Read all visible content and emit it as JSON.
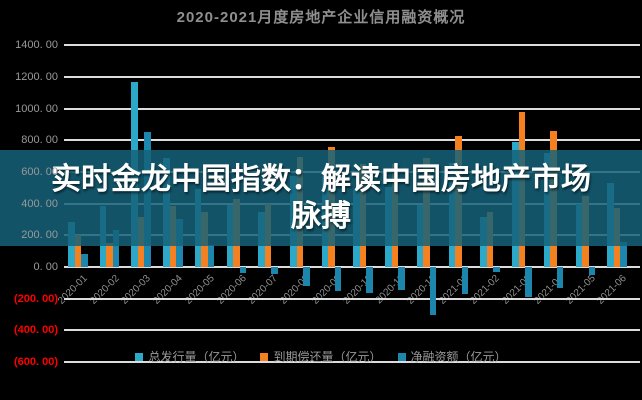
{
  "chart_title": "2020-2021月度房地产企业信用融资概况",
  "overlay": {
    "line1": "实时金龙中国指数：解读中国房地产市场",
    "line2": "脉搏"
  },
  "colors": {
    "background": "#000000",
    "title_gray": "#8f8f8f",
    "gridline": "#dcdcdc",
    "y_label_gray": "#9a9a9a",
    "y_label_negative_red": "#ff0000",
    "overlay_band": "rgba(21,97,121,0.85)",
    "overlay_text": "#ffffff",
    "series_issuance_teal": "#2ca9c9",
    "series_repayment_orange": "#f5801f",
    "series_net_blue": "#1d86ac"
  },
  "y_axis": {
    "labels": [
      "1400. 00",
      "1200. 00",
      "1000. 00",
      "800. 00",
      "600. 00",
      "400. 00",
      "200. 00",
      "0. 00",
      "(200. 00)",
      "(400. 00)",
      "(600. 00)"
    ],
    "values": [
      1400,
      1200,
      1000,
      800,
      600,
      400,
      200,
      0,
      -200,
      -400,
      -600
    ]
  },
  "chart_data": {
    "type": "bar",
    "title": "2020-2021月度房地产企业信用融资概况",
    "xlabel": "",
    "ylabel": "亿元",
    "ylim": [
      -600,
      1400
    ],
    "grid_step": 200,
    "grid": true,
    "legend_position": "bottom",
    "categories": [
      "2020-01",
      "2020-02",
      "2020-03",
      "2020-04",
      "2020-05",
      "2020-06",
      "2020-07",
      "2020-08",
      "2020-09",
      "2020-10",
      "2020-11",
      "2020-12",
      "2021-01",
      "2021-02",
      "2021-03",
      "2021-04",
      "2021-05",
      "2021-06"
    ],
    "series": [
      {
        "name": "总发行量（亿元）",
        "color": "#2ca9c9",
        "values": [
          285,
          385,
          1165,
          690,
          490,
          390,
          350,
          575,
          610,
          485,
          505,
          390,
          655,
          318,
          790,
          720,
          400,
          530
        ]
      },
      {
        "name": "到期偿还量（亿元）",
        "color": "#f5801f",
        "values": [
          200,
          150,
          315,
          385,
          350,
          430,
          395,
          695,
          760,
          650,
          650,
          690,
          825,
          350,
          980,
          855,
          450,
          375
        ]
      },
      {
        "name": "净融资额（亿元）",
        "color": "#1d86ac",
        "values": [
          85,
          235,
          850,
          305,
          140,
          -40,
          -45,
          -120,
          -150,
          -165,
          -145,
          -300,
          -170,
          -32,
          -190,
          -135,
          -50,
          155
        ]
      }
    ]
  }
}
